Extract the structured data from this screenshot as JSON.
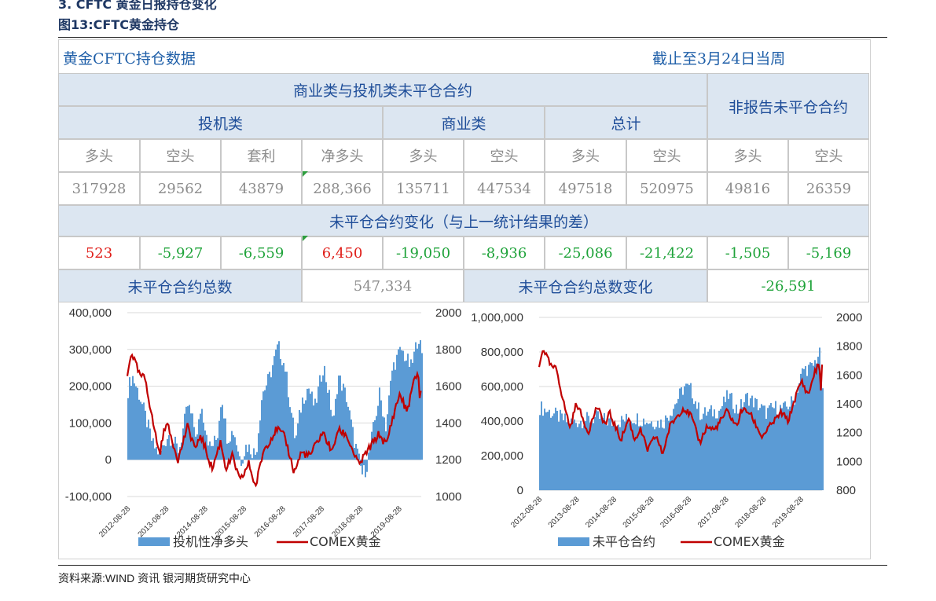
{
  "section_title": "3. CFTC 黄金日报持仓变化",
  "figure_title": "图13:CFTC黄金持仓",
  "source": "资料来源:WIND 资讯    银河期货研究中心",
  "table": {
    "title_left": "黄金CFTC持仓数据",
    "title_right": "截止至3月24日当周",
    "group_reportable": "商业类与投机类未平仓合约",
    "group_nonreportable": "非报告未平仓合约",
    "cat_spec": "投机类",
    "cat_comm": "商业类",
    "cat_total": "总计",
    "subheaders": [
      "多头",
      "空头",
      "套利",
      "净多头",
      "多头",
      "空头",
      "多头",
      "空头",
      "多头",
      "空头"
    ],
    "values": [
      "317928",
      "29562",
      "43879",
      "288,366",
      "135711",
      "447534",
      "497518",
      "520975",
      "49816",
      "26359"
    ],
    "change_title": "未平仓合约变化（与上一统计结果的差）",
    "changes": [
      "523",
      "-5,927",
      "-6,559",
      "6,450",
      "-19,050",
      "-8,936",
      "-25,086",
      "-21,422",
      "-1,505",
      "-5,169"
    ],
    "total_label": "未平仓合约总数",
    "total_value": "547,334",
    "total_change_label": "未平仓合约总数变化",
    "total_change_value": "-26,591"
  },
  "colors": {
    "bar": "#5b9bd5",
    "line": "#c00000",
    "header_bg": "#dce6f1",
    "header_text": "#1f4e99",
    "up": "#e0201b",
    "down": "#1fa33a"
  },
  "chart_data": [
    {
      "type": "area",
      "x_start": "2012-08-28",
      "x_end": "2020-03-24",
      "x_tick_labels": [
        "2012-08-28",
        "2013-08-28",
        "2014-08-28",
        "2015-08-28",
        "2016-08-28",
        "2017-08-28",
        "2018-08-28",
        "2019-08-28"
      ],
      "ylim_left": [
        -100000,
        400000
      ],
      "y_ticks_left": [
        "400,000",
        "300,000",
        "200,000",
        "100,000",
        "0",
        "-100,000"
      ],
      "ylim_right": [
        1000,
        2000
      ],
      "y_ticks_right": [
        "2000",
        "1800",
        "1600",
        "1400",
        "1200",
        "1000"
      ],
      "series": [
        {
          "name": "投机性净多头",
          "axis": "left",
          "type": "bar",
          "points": [
            [
              "2012-08-28",
              190000
            ],
            [
              "2012-10-05",
              230000
            ],
            [
              "2012-12-20",
              170000
            ],
            [
              "2013-02-15",
              110000
            ],
            [
              "2013-04-20",
              40000
            ],
            [
              "2013-06-25",
              15000
            ],
            [
              "2013-09-10",
              70000
            ],
            [
              "2013-12-20",
              25000
            ],
            [
              "2014-03-15",
              150000
            ],
            [
              "2014-06-10",
              60000
            ],
            [
              "2014-07-15",
              150000
            ],
            [
              "2014-10-10",
              30000
            ],
            [
              "2014-12-15",
              60000
            ],
            [
              "2015-01-25",
              180000
            ],
            [
              "2015-03-20",
              60000
            ],
            [
              "2015-05-20",
              80000
            ],
            [
              "2015-07-25",
              -5000
            ],
            [
              "2015-09-15",
              40000
            ],
            [
              "2015-12-15",
              15000
            ],
            [
              "2016-02-10",
              180000
            ],
            [
              "2016-04-15",
              220000
            ],
            [
              "2016-07-10",
              310000
            ],
            [
              "2016-09-15",
              250000
            ],
            [
              "2016-12-20",
              50000
            ],
            [
              "2017-02-20",
              160000
            ],
            [
              "2017-04-20",
              200000
            ],
            [
              "2017-06-20",
              140000
            ],
            [
              "2017-09-10",
              260000
            ],
            [
              "2017-12-15",
              100000
            ],
            [
              "2018-01-25",
              230000
            ],
            [
              "2018-04-15",
              170000
            ],
            [
              "2018-06-20",
              60000
            ],
            [
              "2018-09-10",
              -40000
            ],
            [
              "2018-10-20",
              -20000
            ],
            [
              "2018-12-20",
              80000
            ],
            [
              "2019-02-20",
              180000
            ],
            [
              "2019-04-20",
              90000
            ],
            [
              "2019-06-20",
              250000
            ],
            [
              "2019-09-10",
              300000
            ],
            [
              "2019-12-15",
              250000
            ],
            [
              "2020-02-20",
              340000
            ],
            [
              "2020-03-24",
              280000
            ]
          ]
        },
        {
          "name": "COMEX黄金",
          "axis": "right",
          "type": "line",
          "points": [
            [
              "2012-08-28",
              1650
            ],
            [
              "2012-10-05",
              1790
            ],
            [
              "2012-12-20",
              1660
            ],
            [
              "2013-02-15",
              1640
            ],
            [
              "2013-04-20",
              1420
            ],
            [
              "2013-06-28",
              1230
            ],
            [
              "2013-08-28",
              1410
            ],
            [
              "2013-12-20",
              1200
            ],
            [
              "2014-03-15",
              1380
            ],
            [
              "2014-06-10",
              1250
            ],
            [
              "2014-07-15",
              1340
            ],
            [
              "2014-11-05",
              1150
            ],
            [
              "2015-01-22",
              1300
            ],
            [
              "2015-03-15",
              1150
            ],
            [
              "2015-05-15",
              1220
            ],
            [
              "2015-07-24",
              1080
            ],
            [
              "2015-10-15",
              1180
            ],
            [
              "2015-12-17",
              1050
            ],
            [
              "2016-03-01",
              1250
            ],
            [
              "2016-07-06",
              1370
            ],
            [
              "2016-09-20",
              1320
            ],
            [
              "2016-12-15",
              1130
            ],
            [
              "2017-02-20",
              1240
            ],
            [
              "2017-05-10",
              1220
            ],
            [
              "2017-09-08",
              1350
            ],
            [
              "2017-12-12",
              1240
            ],
            [
              "2018-01-25",
              1360
            ],
            [
              "2018-04-15",
              1340
            ],
            [
              "2018-08-15",
              1170
            ],
            [
              "2018-10-15",
              1230
            ],
            [
              "2019-02-20",
              1340
            ],
            [
              "2019-05-01",
              1280
            ],
            [
              "2019-06-25",
              1420
            ],
            [
              "2019-09-04",
              1560
            ],
            [
              "2019-11-10",
              1460
            ],
            [
              "2020-01-08",
              1610
            ],
            [
              "2020-02-24",
              1680
            ],
            [
              "2020-03-16",
              1480
            ],
            [
              "2020-03-24",
              1660
            ]
          ]
        }
      ],
      "legend": [
        "投机性净多头",
        "COMEX黄金"
      ]
    },
    {
      "type": "area",
      "x_start": "2012-08-28",
      "x_end": "2020-03-24",
      "x_tick_labels": [
        "2012-08-28",
        "2013-08-28",
        "2014-08-28",
        "2015-08-28",
        "2016-08-28",
        "2017-08-28",
        "2018-08-28",
        "2019-08-28"
      ],
      "ylim_left": [
        0,
        1000000
      ],
      "y_ticks_left": [
        "1,000,000",
        "800,000",
        "600,000",
        "400,000",
        "200,000",
        "0"
      ],
      "ylim_right": [
        800,
        2000
      ],
      "y_ticks_right": [
        "2000",
        "1800",
        "1600",
        "1400",
        "1200",
        "1000",
        "800"
      ],
      "series": [
        {
          "name": "未平仓合约",
          "axis": "left",
          "type": "bar",
          "points": [
            [
              "2012-08-28",
              480000
            ],
            [
              "2013-01-15",
              440000
            ],
            [
              "2013-06-15",
              390000
            ],
            [
              "2013-09-15",
              400000
            ],
            [
              "2014-03-15",
              420000
            ],
            [
              "2014-08-15",
              390000
            ],
            [
              "2015-03-15",
              420000
            ],
            [
              "2015-07-15",
              400000
            ],
            [
              "2015-12-15",
              390000
            ],
            [
              "2016-03-15",
              470000
            ],
            [
              "2016-07-10",
              600000
            ],
            [
              "2016-09-15",
              580000
            ],
            [
              "2016-12-15",
              440000
            ],
            [
              "2017-03-15",
              450000
            ],
            [
              "2017-06-15",
              460000
            ],
            [
              "2017-09-15",
              550000
            ],
            [
              "2017-12-15",
              460000
            ],
            [
              "2018-03-15",
              540000
            ],
            [
              "2018-06-15",
              500000
            ],
            [
              "2018-09-15",
              450000
            ],
            [
              "2018-12-15",
              480000
            ],
            [
              "2019-03-15",
              470000
            ],
            [
              "2019-06-15",
              520000
            ],
            [
              "2019-09-15",
              700000
            ],
            [
              "2019-12-15",
              710000
            ],
            [
              "2020-02-20",
              800000
            ],
            [
              "2020-03-24",
              547334
            ]
          ]
        },
        {
          "name": "COMEX黄金",
          "axis": "right",
          "type": "line",
          "points": [
            [
              "2012-08-28",
              1650
            ],
            [
              "2012-10-05",
              1790
            ],
            [
              "2012-12-20",
              1660
            ],
            [
              "2013-02-15",
              1640
            ],
            [
              "2013-04-20",
              1420
            ],
            [
              "2013-06-28",
              1230
            ],
            [
              "2013-08-28",
              1410
            ],
            [
              "2013-12-20",
              1200
            ],
            [
              "2014-03-15",
              1380
            ],
            [
              "2014-06-10",
              1250
            ],
            [
              "2014-07-15",
              1340
            ],
            [
              "2014-11-05",
              1150
            ],
            [
              "2015-01-22",
              1300
            ],
            [
              "2015-03-15",
              1150
            ],
            [
              "2015-05-15",
              1220
            ],
            [
              "2015-07-24",
              1080
            ],
            [
              "2015-10-15",
              1180
            ],
            [
              "2015-12-17",
              1050
            ],
            [
              "2016-03-01",
              1250
            ],
            [
              "2016-07-06",
              1370
            ],
            [
              "2016-09-20",
              1320
            ],
            [
              "2016-12-15",
              1130
            ],
            [
              "2017-02-20",
              1240
            ],
            [
              "2017-05-10",
              1220
            ],
            [
              "2017-09-08",
              1350
            ],
            [
              "2017-12-12",
              1240
            ],
            [
              "2018-01-25",
              1360
            ],
            [
              "2018-04-15",
              1340
            ],
            [
              "2018-08-15",
              1170
            ],
            [
              "2018-10-15",
              1230
            ],
            [
              "2019-02-20",
              1340
            ],
            [
              "2019-05-01",
              1280
            ],
            [
              "2019-06-25",
              1420
            ],
            [
              "2019-09-04",
              1560
            ],
            [
              "2019-11-10",
              1460
            ],
            [
              "2020-01-08",
              1610
            ],
            [
              "2020-02-24",
              1680
            ],
            [
              "2020-03-16",
              1480
            ],
            [
              "2020-03-24",
              1660
            ]
          ]
        }
      ],
      "legend": [
        "未平仓合约",
        "COMEX黄金"
      ]
    }
  ]
}
